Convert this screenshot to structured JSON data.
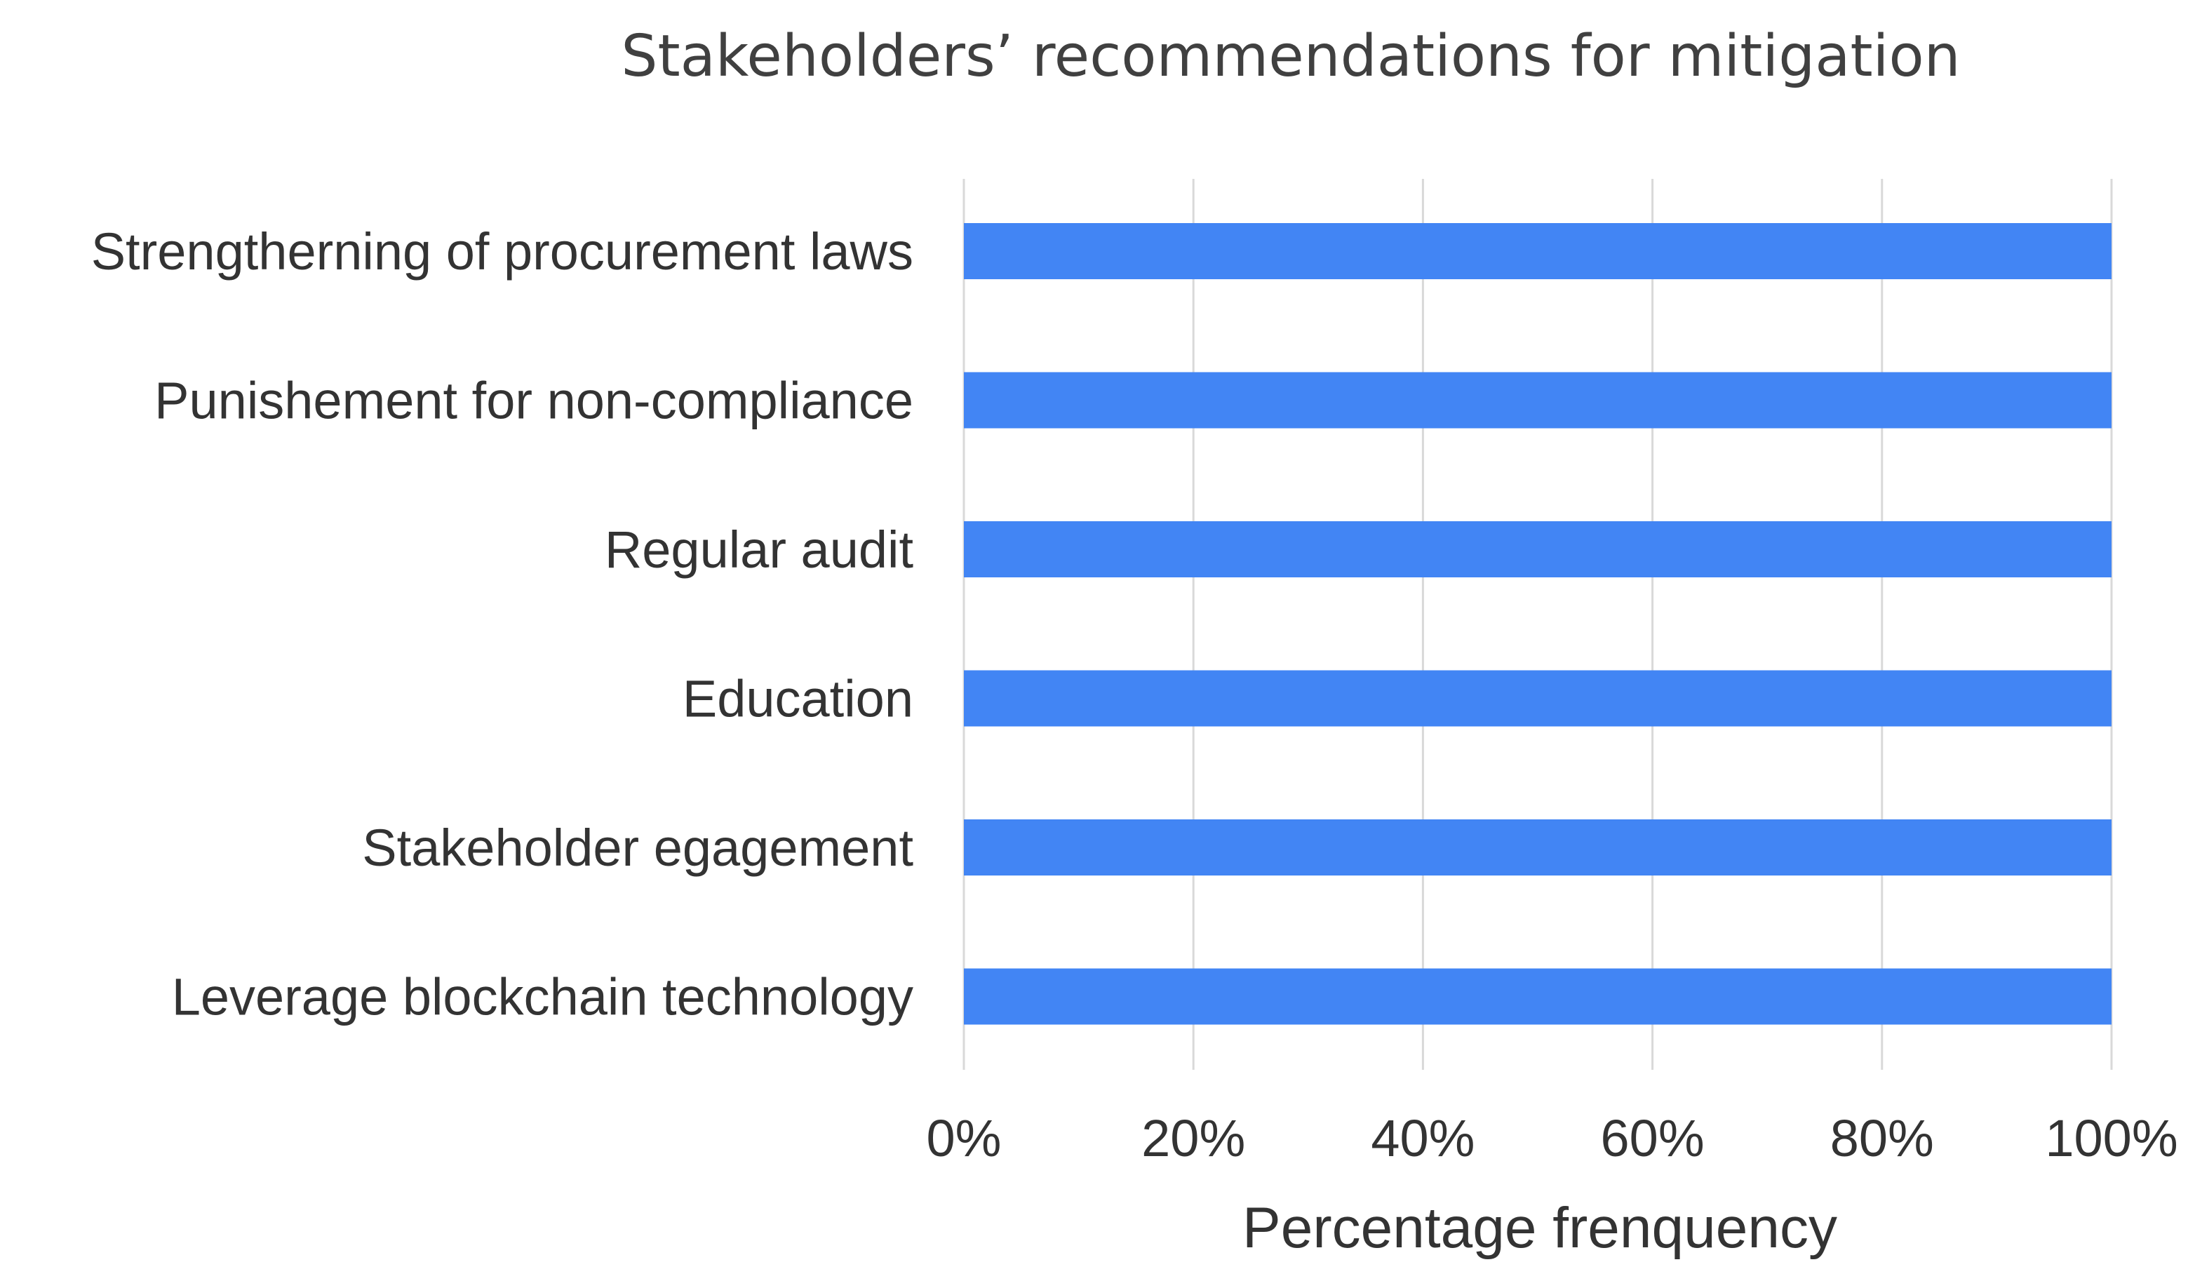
{
  "chart_data": {
    "type": "bar",
    "orientation": "horizontal",
    "title": "Stakeholders’ recommendations for mitigation",
    "xlabel": "Percentage frenquency",
    "ylabel": "",
    "categories": [
      "Strengtherning of procurement laws",
      "Punishement for non-compliance",
      "Regular audit",
      "Education",
      "Stakeholder egagement",
      "Leverage blockchain technology"
    ],
    "values": [
      100,
      100,
      100,
      100,
      100,
      100
    ],
    "xlim": [
      0,
      100
    ],
    "xticks": [
      "0%",
      "20%",
      "40%",
      "60%",
      "80%",
      "100%"
    ],
    "grid": "vertical",
    "legend": "none",
    "bar_color": "#4285f4"
  }
}
